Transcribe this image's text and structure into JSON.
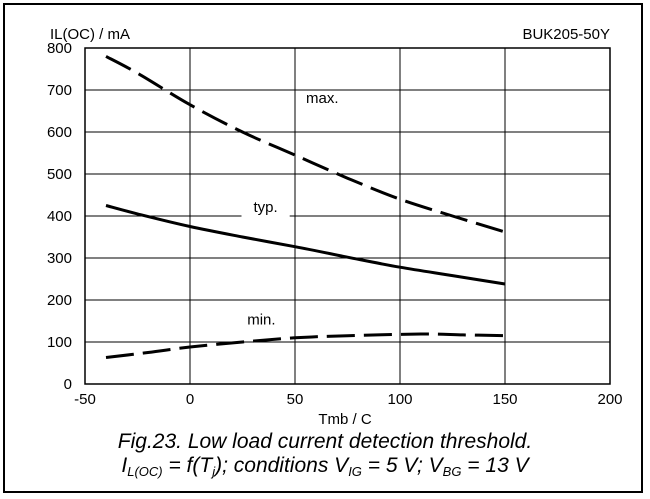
{
  "chart_data": {
    "type": "line",
    "ylabel": "IL(OC) / mA",
    "xlabel": "Tmb / C",
    "part_number": "BUK205-50Y",
    "xlim": [
      -50,
      200
    ],
    "ylim": [
      0,
      800
    ],
    "x_ticks": [
      -50,
      0,
      50,
      100,
      150,
      200
    ],
    "y_ticks": [
      0,
      100,
      200,
      300,
      400,
      500,
      600,
      700,
      800
    ],
    "grid": true,
    "series": [
      {
        "name": "max.",
        "style": "dashed",
        "x": [
          -40,
          -25,
          0,
          25,
          50,
          75,
          100,
          125,
          150
        ],
        "y": [
          780,
          740,
          665,
          600,
          545,
          490,
          440,
          400,
          362
        ]
      },
      {
        "name": "typ.",
        "style": "solid",
        "x": [
          -40,
          -25,
          0,
          25,
          50,
          75,
          100,
          125,
          150
        ],
        "y": [
          425,
          405,
          375,
          350,
          327,
          302,
          278,
          258,
          238
        ]
      },
      {
        "name": "min.",
        "style": "dashed",
        "x": [
          -40,
          -20,
          0,
          25,
          50,
          75,
          110,
          130,
          150
        ],
        "y": [
          63,
          75,
          88,
          100,
          110,
          115,
          119,
          117,
          115
        ]
      }
    ]
  },
  "caption": {
    "line1": "Fig.23.   Low load current detection threshold.",
    "l2_I": "I",
    "l2_I_sub": "L(OC)",
    "l2_a": " = f(T",
    "l2_T_sub": "j",
    "l2_b": "); conditions V",
    "l2_V1_sub": "IG",
    "l2_c": " = 5 V; V",
    "l2_V2_sub": "BG",
    "l2_d": " = 13 V"
  }
}
